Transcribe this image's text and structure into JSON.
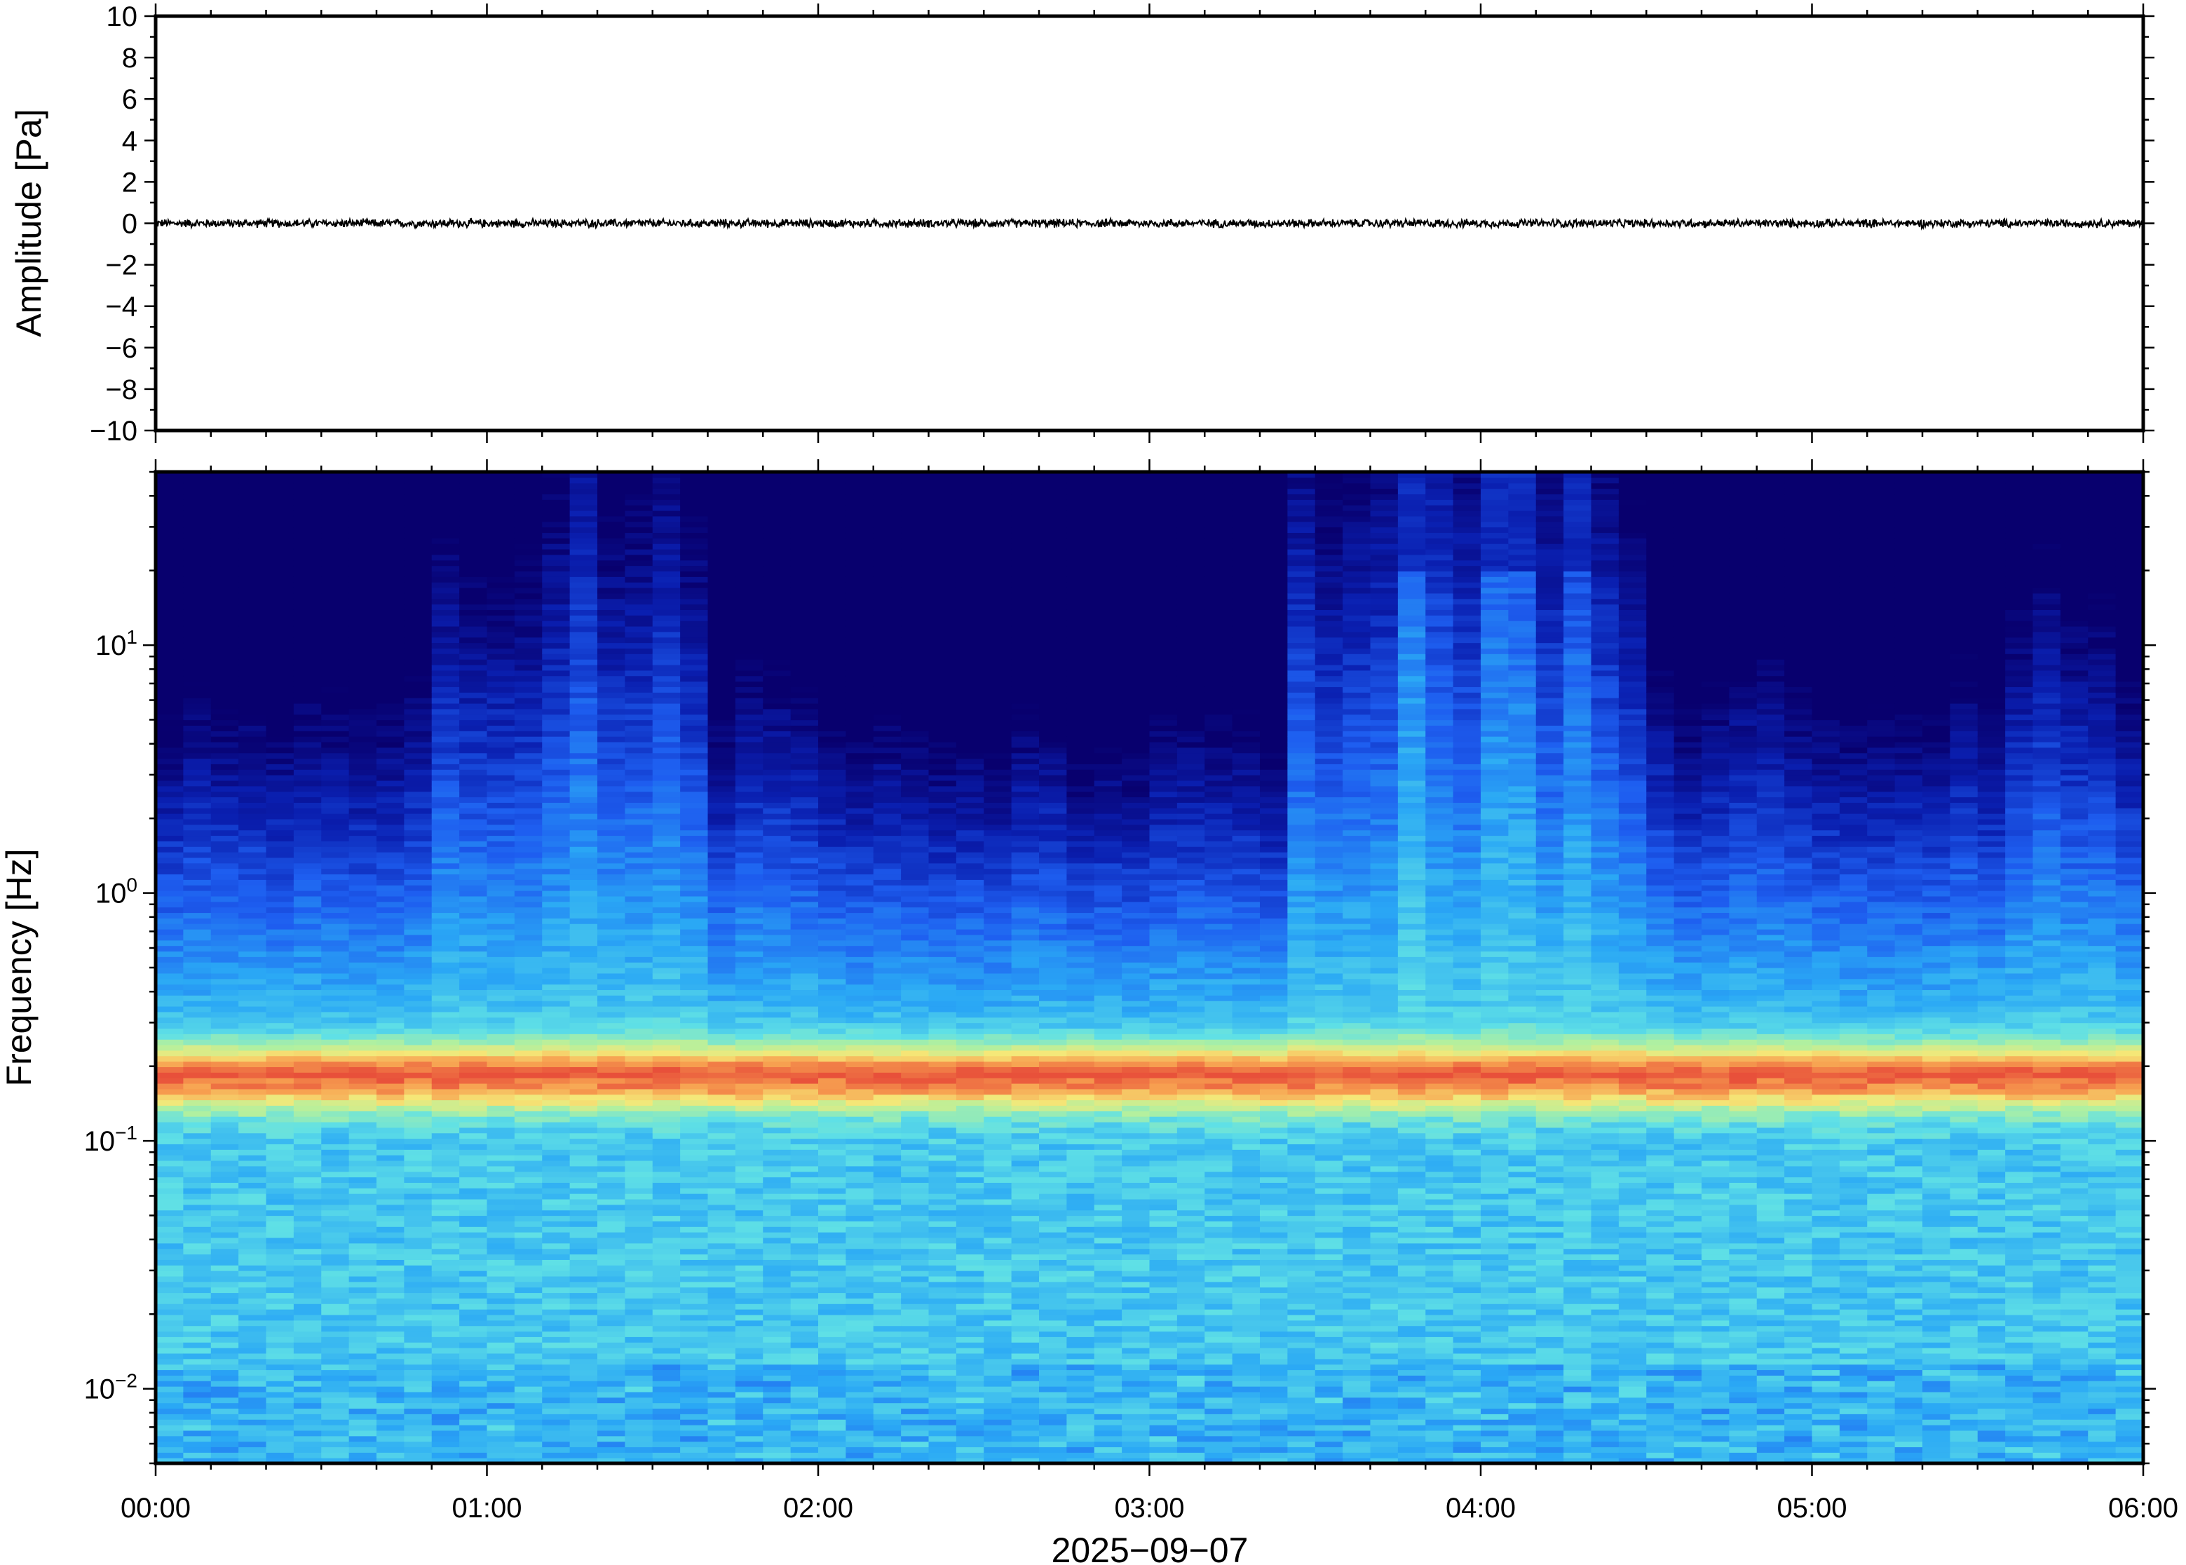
{
  "chart_data": [
    {
      "type": "line",
      "panel": "waveform",
      "ylabel": "Amplitude [Pa]",
      "ylim": [
        -10,
        10
      ],
      "yticks": [
        10,
        8,
        6,
        4,
        2,
        0,
        -2,
        -4,
        -6,
        -8,
        -10
      ],
      "ytick_labels": [
        "10",
        "8",
        "6",
        "4",
        "2",
        "0",
        "−2",
        "−4",
        "−6",
        "−8",
        "−10"
      ],
      "xlim": [
        "00:00",
        "06:00"
      ],
      "series": [
        {
          "description_free": true,
          "baseline": 0,
          "noise_amplitude": 0.15,
          "color": "#000000"
        }
      ]
    },
    {
      "type": "heatmap",
      "panel": "spectrogram",
      "ylabel": "Frequency [Hz]",
      "yscale": "log",
      "ylim": [
        0.005,
        50
      ],
      "yticks": [
        0.01,
        0.1,
        1,
        10
      ],
      "ytick_labels": [
        {
          "base": "10",
          "exp": "−2"
        },
        {
          "base": "10",
          "exp": "−1"
        },
        {
          "base": "10",
          "exp": "0"
        },
        {
          "base": "10",
          "exp": "1"
        }
      ],
      "xlabel": "2025−09−07",
      "xticks": [
        "00:00",
        "01:00",
        "02:00",
        "03:00",
        "04:00",
        "05:00",
        "06:00"
      ],
      "xlim_hours": [
        0,
        6
      ],
      "colormap": [
        "#08006e",
        "#0a1fb0",
        "#1e5ef0",
        "#2aa8f5",
        "#5fe0e6",
        "#b0f0a0",
        "#f5e878",
        "#f7a050",
        "#e8503a"
      ],
      "dominant_band_hz": 0.18,
      "time_columns": 72
    }
  ]
}
